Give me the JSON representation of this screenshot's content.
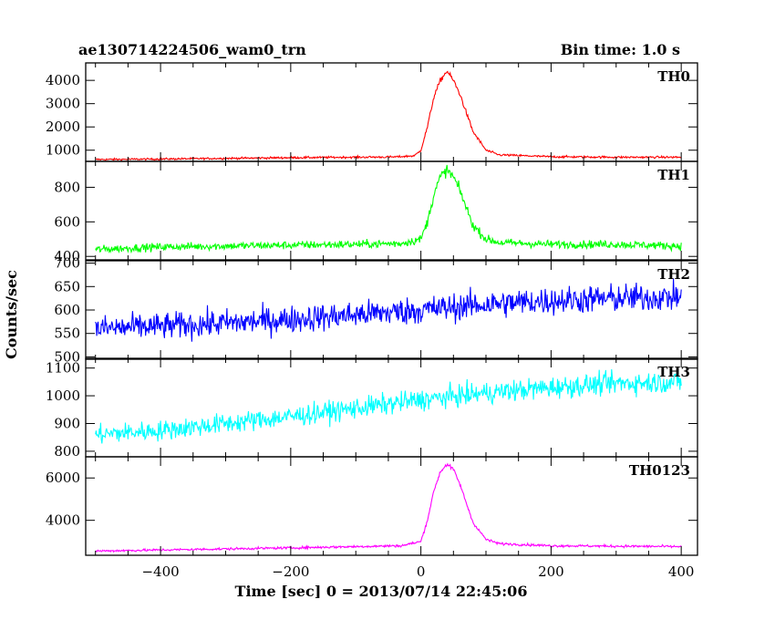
{
  "header": {
    "title": "ae130714224506_wam0_trn",
    "bin_time": "Bin time: 1.0 s"
  },
  "chart_data": {
    "type": "line",
    "title": "ae130714224506_wam0_trn",
    "xlabel": "Time [sec] 0 = 2013/07/14 22:45:06",
    "ylabel": "Counts/sec",
    "xlim": [
      -515,
      425
    ],
    "xticks": [
      -400,
      -200,
      0,
      200,
      400
    ],
    "grid": false,
    "series": [
      {
        "name": "TH0",
        "color": "#ff0000",
        "ylim": [
          520,
          4750
        ],
        "yticks": [
          1000,
          2000,
          3000,
          4000
        ],
        "x": [
          -500,
          -400,
          -300,
          -200,
          -100,
          -40,
          -10,
          0,
          10,
          20,
          30,
          40,
          50,
          60,
          70,
          80,
          100,
          120,
          200,
          300,
          400
        ],
        "y": [
          600,
          620,
          650,
          680,
          700,
          710,
          760,
          1000,
          2000,
          3300,
          4000,
          4400,
          4000,
          3400,
          2600,
          1800,
          1000,
          800,
          720,
          700,
          700
        ],
        "noise": 40
      },
      {
        "name": "TH1",
        "color": "#00ff00",
        "ylim": [
          380,
          950
        ],
        "yticks": [
          400,
          600,
          800
        ],
        "x": [
          -500,
          -400,
          -300,
          -200,
          -100,
          -30,
          0,
          10,
          20,
          30,
          40,
          50,
          60,
          70,
          80,
          100,
          120,
          200,
          300,
          400
        ],
        "y": [
          440,
          455,
          460,
          465,
          470,
          475,
          500,
          600,
          760,
          860,
          900,
          860,
          780,
          680,
          580,
          500,
          480,
          470,
          470,
          460
        ],
        "noise": 22
      },
      {
        "name": "TH2",
        "color": "#0000ff",
        "ylim": [
          495,
          705
        ],
        "yticks": [
          500,
          550,
          600,
          650,
          700
        ],
        "x": [
          -500,
          -400,
          -300,
          -200,
          -100,
          0,
          100,
          200,
          300,
          400
        ],
        "y": [
          560,
          565,
          572,
          580,
          590,
          600,
          612,
          620,
          625,
          628
        ],
        "noise": 28
      },
      {
        "name": "TH3",
        "color": "#00ffff",
        "ylim": [
          780,
          1135
        ],
        "yticks": [
          800,
          900,
          1000,
          1100
        ],
        "x": [
          -500,
          -400,
          -300,
          -200,
          -100,
          0,
          100,
          200,
          300,
          400
        ],
        "y": [
          860,
          875,
          900,
          925,
          955,
          985,
          1010,
          1030,
          1045,
          1050
        ],
        "noise": 35
      },
      {
        "name": "TH0123",
        "color": "#ff00ff",
        "ylim": [
          2350,
          7000
        ],
        "yticks": [
          4000,
          6000
        ],
        "x": [
          -500,
          -400,
          -300,
          -200,
          -100,
          -30,
          0,
          10,
          20,
          30,
          40,
          50,
          60,
          70,
          80,
          100,
          120,
          200,
          300,
          400
        ],
        "y": [
          2550,
          2600,
          2650,
          2700,
          2760,
          2800,
          3000,
          4000,
          5400,
          6300,
          6650,
          6400,
          5700,
          4800,
          3900,
          3100,
          2900,
          2800,
          2780,
          2760
        ],
        "noise": 55
      }
    ]
  }
}
